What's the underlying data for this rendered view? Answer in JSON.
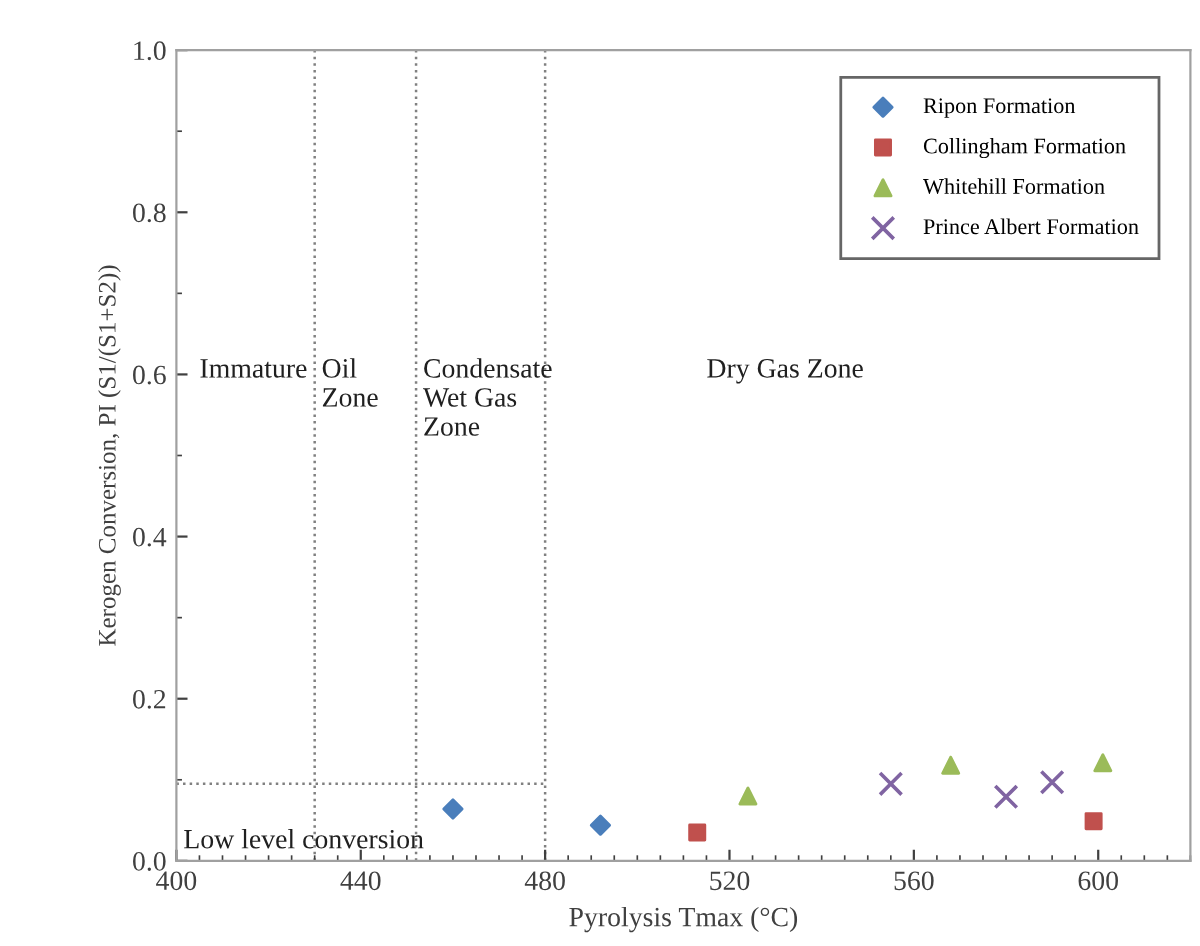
{
  "chart_data": {
    "type": "scatter",
    "xlabel": "Pyrolysis Tmax (°C)",
    "ylabel": "Kerogen Conversion, PI (S1/(S1+S2))",
    "xlim": [
      400,
      620
    ],
    "xticks": [
      400,
      440,
      480,
      520,
      560,
      600
    ],
    "ylim": [
      0,
      1
    ],
    "yticks": [
      {
        "value": 0,
        "label": "0.0"
      },
      {
        "value": 0.2,
        "label": "0.2"
      },
      {
        "value": 0.4,
        "label": "0.4"
      },
      {
        "value": 0.6,
        "label": "0.6"
      },
      {
        "value": 0.8,
        "label": "0.8"
      },
      {
        "value": 1,
        "label": "1.0"
      }
    ],
    "legend": "top right",
    "series": [
      {
        "name": "Ripon Formation",
        "color": "#4a7ebb",
        "marker": "diamond",
        "x": [
          460,
          492
        ],
        "values": [
          0.064,
          0.044
        ]
      },
      {
        "name": "Collingham Formation",
        "color": "#c0504d",
        "marker": "square",
        "x": [
          513,
          599
        ],
        "values": [
          0.035,
          0.049
        ]
      },
      {
        "name": "Whitehill Formation",
        "color": "#9bbb59",
        "marker": "triangle",
        "x": [
          524,
          568,
          601
        ],
        "values": [
          0.08,
          0.118,
          0.121
        ]
      },
      {
        "name": "Prince Albert Formation",
        "color": "#8064a2",
        "marker": "cross",
        "x": [
          555,
          580,
          590
        ],
        "values": [
          0.095,
          0.079,
          0.097
        ]
      }
    ],
    "ref_lines": [
      {
        "axis": "x",
        "value": 430,
        "label": "Oil\nZone",
        "line_style": "dotted",
        "color": "#808080"
      },
      {
        "axis": "x",
        "value": 452,
        "label": "Condensate\nWet Gas\nZone",
        "line_style": "dotted",
        "color": "#808080"
      },
      {
        "axis": "x",
        "value": 480,
        "line_style": "dotted",
        "color": "#808080"
      },
      {
        "axis": "y",
        "value": 0.095,
        "label": "Low level conversion",
        "line_style": "dotted",
        "color": "#808080"
      }
    ],
    "annotations": [
      "Immature",
      "Dry Gas Zone"
    ]
  }
}
